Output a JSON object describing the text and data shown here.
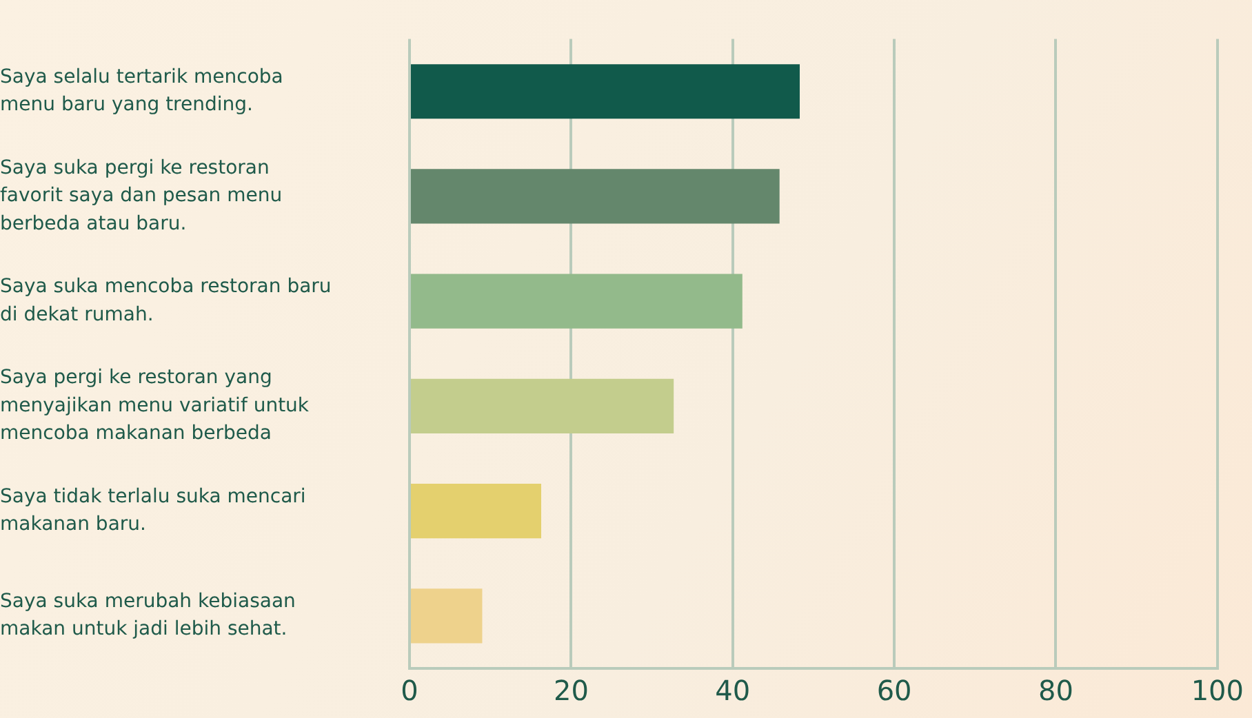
{
  "chart_data": {
    "type": "bar",
    "orientation": "horizontal",
    "categories": [
      "Saya selalu tertarik mencoba menu baru yang trending.",
      "Saya suka pergi ke restoran favorit saya dan pesan menu berbeda atau baru.",
      "Saya suka mencoba restoran baru di dekat rumah.",
      "Saya pergi ke restoran yang menyajikan menu variatif untuk mencoba makanan berbeda",
      "Saya tidak terlalu suka mencari makanan baru.",
      "Saya suka merubah kebiasaan makan untuk jadi lebih sehat."
    ],
    "values": [
      48.3,
      45.8,
      41.2,
      32.7,
      16.3,
      9.0
    ],
    "colors": [
      "#115a4b",
      "#64876c",
      "#93ba8b",
      "#c3cd8d",
      "#e4d06e",
      "#eed28c"
    ],
    "xlim": [
      0,
      100
    ],
    "xticks": [
      0,
      20,
      40,
      60,
      80,
      100
    ],
    "grid": "x",
    "legend": false
  }
}
